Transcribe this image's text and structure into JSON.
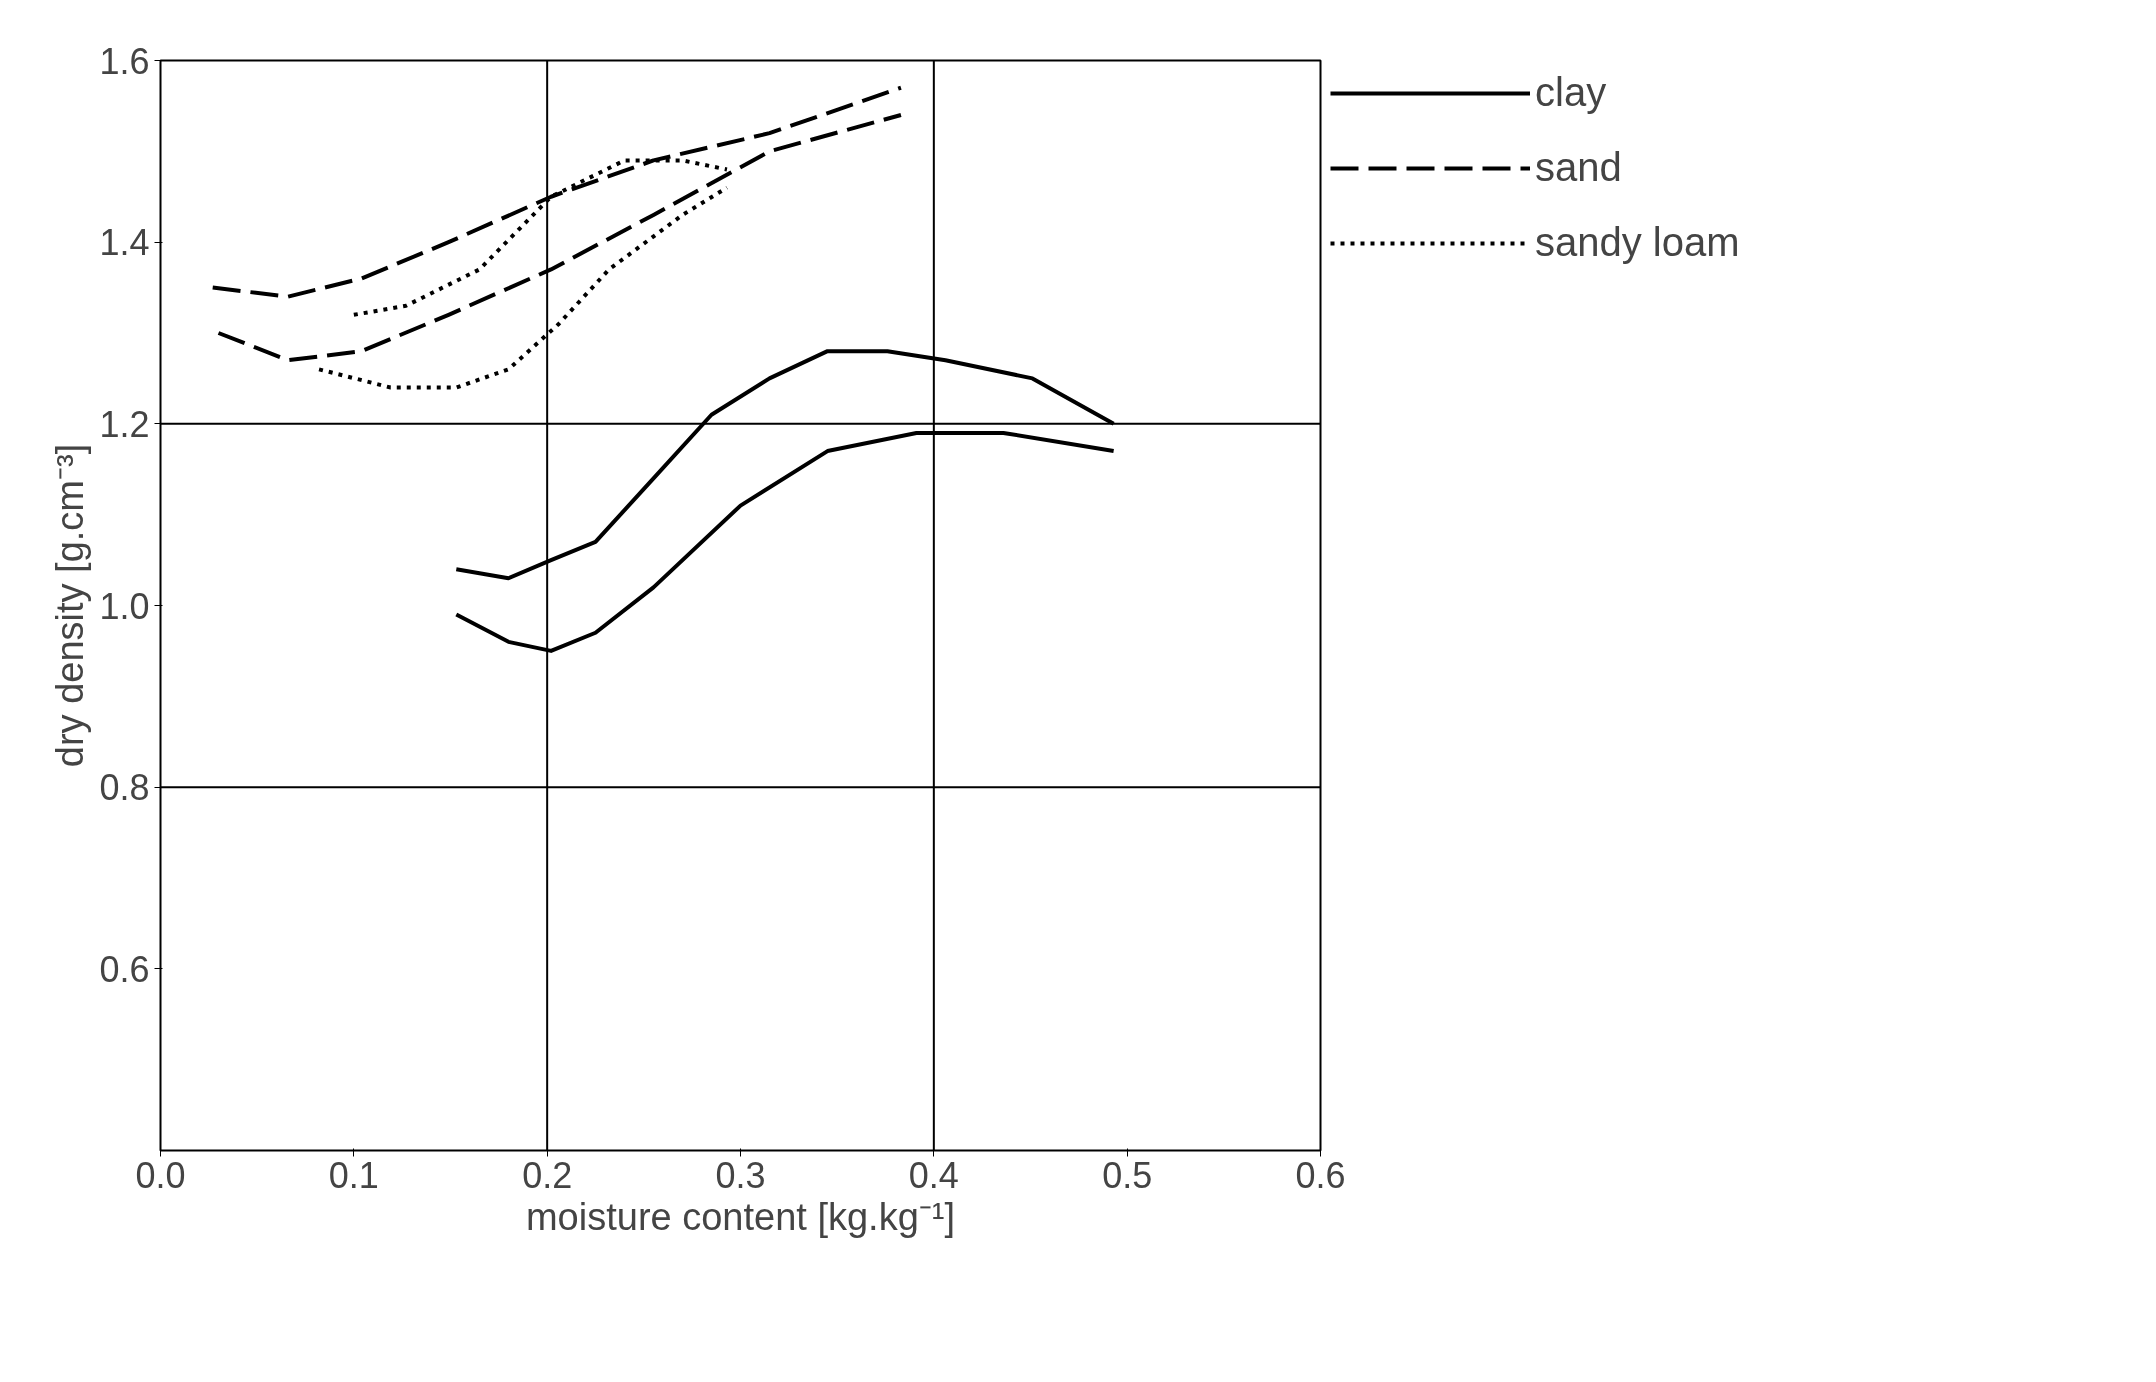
{
  "chart_data": {
    "type": "line",
    "xlabel": "moisture content [kg.kg⁻¹]",
    "ylabel": "dry density [g.cm⁻³]",
    "xlim": [
      0.0,
      0.6
    ],
    "ylim": [
      0.4,
      1.6
    ],
    "xticks": [
      {
        "value": 0.0,
        "label": "0.0"
      },
      {
        "value": 0.1,
        "label": "0.1"
      },
      {
        "value": 0.2,
        "label": "0.2"
      },
      {
        "value": 0.3,
        "label": "0.3"
      },
      {
        "value": 0.4,
        "label": "0.4"
      },
      {
        "value": 0.5,
        "label": "0.5"
      },
      {
        "value": 0.6,
        "label": "0.6"
      }
    ],
    "yticks": [
      {
        "value": 0.6,
        "label": "0.6"
      },
      {
        "value": 0.8,
        "label": "0.8"
      },
      {
        "value": 1.0,
        "label": "1.0"
      },
      {
        "value": 1.2,
        "label": "1.2"
      },
      {
        "value": 1.4,
        "label": "1.4"
      },
      {
        "value": 1.6,
        "label": "1.6"
      }
    ],
    "ref_lines": [
      {
        "axis": "x",
        "value": 0.2,
        "color": "#000000"
      },
      {
        "axis": "x",
        "value": 0.4,
        "color": "#000000"
      },
      {
        "axis": "y",
        "value": 0.8,
        "color": "#000000"
      },
      {
        "axis": "y",
        "value": 1.2,
        "color": "#000000"
      }
    ],
    "legend": "right",
    "series": [
      {
        "name": "clay",
        "color": "#000000",
        "line_style": "solid",
        "x": [
          0.153,
          0.18,
          0.202,
          0.225,
          0.255,
          0.285,
          0.315,
          0.345,
          0.376,
          0.406,
          0.451,
          0.493
        ],
        "values": [
          1.04,
          1.03,
          1.05,
          1.07,
          1.14,
          1.21,
          1.25,
          1.28,
          1.28,
          1.27,
          1.25,
          1.2
        ]
      },
      {
        "color": "#000000",
        "line_style": "solid",
        "x": [
          0.153,
          0.18,
          0.202,
          0.225,
          0.255,
          0.3,
          0.345,
          0.391,
          0.436,
          0.493
        ],
        "values": [
          0.99,
          0.96,
          0.95,
          0.97,
          1.02,
          1.11,
          1.17,
          1.19,
          1.19,
          1.17
        ]
      },
      {
        "name": "sand",
        "color": "#000000",
        "line_style": "dashed",
        "x": [
          0.027,
          0.066,
          0.104,
          0.149,
          0.202,
          0.255,
          0.315,
          0.383
        ],
        "values": [
          1.35,
          1.34,
          1.36,
          1.4,
          1.45,
          1.49,
          1.52,
          1.57
        ]
      },
      {
        "color": "#000000",
        "line_style": "dashed",
        "x": [
          0.03,
          0.066,
          0.104,
          0.149,
          0.202,
          0.255,
          0.315,
          0.383
        ],
        "values": [
          1.3,
          1.27,
          1.28,
          1.32,
          1.37,
          1.43,
          1.5,
          1.54
        ]
      },
      {
        "name": "sandy loam",
        "color": "#000000",
        "line_style": "dotted",
        "x": [
          0.1,
          0.127,
          0.165,
          0.202,
          0.24,
          0.27,
          0.293
        ],
        "values": [
          1.32,
          1.33,
          1.37,
          1.45,
          1.49,
          1.49,
          1.48
        ]
      },
      {
        "color": "#000000",
        "line_style": "dotted",
        "x": [
          0.082,
          0.119,
          0.153,
          0.18,
          0.206,
          0.232,
          0.27,
          0.293
        ],
        "values": [
          1.26,
          1.24,
          1.24,
          1.26,
          1.31,
          1.37,
          1.43,
          1.46
        ]
      }
    ]
  }
}
